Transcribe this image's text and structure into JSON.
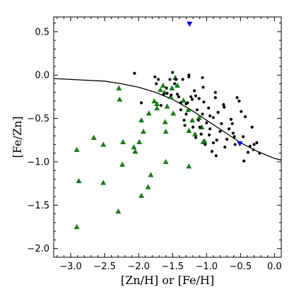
{
  "chart_data": {
    "type": "scatter",
    "xlabel": "[Zn/H] or [Fe/H]",
    "ylabel": "[Fe/Zn]",
    "xlim": [
      -3.25,
      0.1
    ],
    "ylim": [
      -2.1,
      0.67
    ],
    "xticks": [
      -3.0,
      -2.5,
      -2.0,
      -1.5,
      -1.0,
      -0.5,
      0.0
    ],
    "xtick_labels": [
      "−3.0",
      "−2.5",
      "−2.0",
      "−1.5",
      "−1.0",
      "−0.5",
      "0.0"
    ],
    "yticks": [
      0.5,
      0.0,
      -0.5,
      -1.0,
      -1.5,
      -2.0
    ],
    "ytick_labels": [
      "0.5",
      "0.0",
      "−0.5",
      "−1.0",
      "−1.5",
      "−2.0"
    ],
    "grid": false,
    "colors": {
      "triangles": "#1a7a1a",
      "dots": "#000000",
      "blue": "#0000ff",
      "curve": "#000000"
    },
    "series": [
      {
        "marker": "triangle-up",
        "color": "#1a7a1a",
        "x": [
          -2.29,
          -2.28,
          -2.66,
          -2.52,
          -2.23,
          -2.07,
          -2.05,
          -1.96,
          -1.93,
          -1.85,
          -1.77,
          -1.73,
          -1.68,
          -1.64,
          -1.62,
          -1.61,
          -1.58,
          -1.53,
          -1.49,
          -1.46,
          -1.43,
          -1.34,
          -1.27,
          -1.21,
          -1.17,
          -1.11,
          -1.07,
          -1.05,
          -1.03,
          -1.26,
          -1.51,
          -1.73,
          -1.6,
          -2.91,
          -2.88,
          -2.52,
          -2.24,
          -2.3,
          -1.96,
          -1.86,
          -1.26,
          -1.6,
          -1.82,
          -1.99,
          -2.91
        ],
        "y": [
          -0.15,
          -0.28,
          -0.72,
          -0.8,
          -0.77,
          -0.83,
          -0.88,
          -0.52,
          -0.65,
          -0.44,
          -0.3,
          -0.38,
          -0.17,
          -0.12,
          -0.2,
          -0.54,
          -0.36,
          -0.25,
          -0.44,
          -0.03,
          -0.12,
          -0.29,
          -0.4,
          -0.52,
          -0.68,
          -0.49,
          -0.6,
          -0.77,
          -0.76,
          -0.64,
          -0.15,
          -0.33,
          -0.65,
          -0.86,
          -1.22,
          -1.24,
          -1.03,
          -1.57,
          -1.39,
          -1.29,
          -1.05,
          -1.0,
          -1.15,
          -0.77,
          -1.75
        ]
      },
      {
        "marker": "dot",
        "color": "#000000",
        "x": [
          -2.06,
          -1.96,
          -1.76,
          -1.74,
          -1.71,
          -1.67,
          -1.63,
          -1.59,
          -1.54,
          -1.5,
          -1.47,
          -1.43,
          -1.41,
          -1.38,
          -1.35,
          -1.32,
          -1.3,
          -1.28,
          -1.26,
          -1.23,
          -1.21,
          -1.18,
          -1.16,
          -1.14,
          -1.12,
          -1.1,
          -1.08,
          -1.06,
          -1.04,
          -1.02,
          -1.0,
          -0.97,
          -0.95,
          -0.92,
          -0.9,
          -0.87,
          -0.85,
          -0.83,
          -0.8,
          -0.78,
          -0.75,
          -0.73,
          -0.7,
          -0.67,
          -0.64,
          -0.61,
          -0.58,
          -0.55,
          -0.52,
          -0.49,
          -0.46,
          -0.43,
          -0.39,
          -0.36,
          -0.33,
          -0.3,
          -0.26,
          -0.22,
          -1.26,
          -1.16,
          -1.06,
          -0.95,
          -0.86,
          -0.62,
          -0.45,
          -0.31,
          -1.45,
          -1.38,
          -1.33,
          -1.52,
          -1.58,
          -0.96,
          -0.87,
          -0.74,
          -0.59,
          -1.05,
          -0.9,
          -1.11,
          -1.2,
          -1.3
        ],
        "y": [
          0.02,
          -0.32,
          -0.02,
          -0.1,
          -0.05,
          -0.35,
          -0.22,
          -0.15,
          -0.05,
          0.03,
          -0.1,
          -0.22,
          -0.25,
          -0.4,
          -0.05,
          -0.58,
          -0.45,
          -0.32,
          -0.02,
          -0.25,
          -0.28,
          -0.18,
          -0.72,
          -0.4,
          -0.52,
          -0.6,
          -0.68,
          -0.45,
          -0.31,
          -0.8,
          -0.55,
          -0.38,
          -0.47,
          -0.88,
          -0.78,
          -0.2,
          -0.75,
          -0.43,
          -0.65,
          -0.56,
          -0.34,
          -0.83,
          -0.74,
          -0.62,
          -0.51,
          -0.67,
          -0.8,
          -0.26,
          -0.3,
          -0.42,
          -0.71,
          -0.48,
          -0.89,
          -0.82,
          -0.6,
          -0.8,
          -0.78,
          -0.9,
          0.0,
          -0.24,
          -0.03,
          -0.62,
          -0.93,
          -0.56,
          -0.99,
          -0.86,
          -0.05,
          -0.32,
          -0.52,
          -0.23,
          -0.21,
          -0.69,
          -0.26,
          -0.37,
          -0.71,
          -0.14,
          -0.49,
          -0.27,
          -0.6,
          -0.33
        ]
      },
      {
        "marker": "triangle-down",
        "color": "#0000ff",
        "x": [
          -1.25,
          -0.51
        ],
        "y": [
          0.59,
          -0.79
        ]
      }
    ],
    "curve": {
      "x": [
        -3.25,
        -3.0,
        -2.75,
        -2.5,
        -2.25,
        -2.0,
        -1.75,
        -1.5,
        -1.25,
        -1.0,
        -0.75,
        -0.5,
        -0.25,
        0.0,
        0.1
      ],
      "y": [
        -0.04,
        -0.05,
        -0.06,
        -0.07,
        -0.1,
        -0.14,
        -0.2,
        -0.28,
        -0.39,
        -0.52,
        -0.65,
        -0.78,
        -0.88,
        -0.96,
        -0.98
      ]
    }
  }
}
